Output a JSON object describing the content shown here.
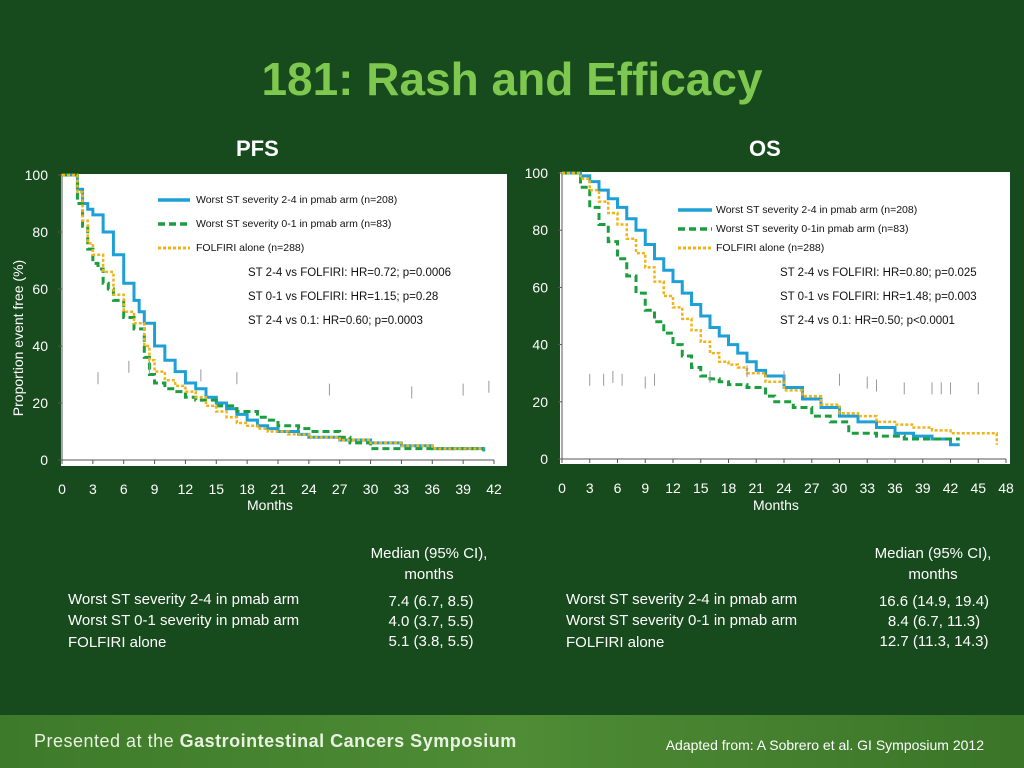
{
  "slide": {
    "title": "181: Rash and Efficacy",
    "footer_prefix": "Presented at the",
    "footer_event": "Gastrointestinal Cancers Symposium",
    "footer_source": "Adapted from: A Sobrero et al. GI Symposium 2012",
    "ylabel": "Proportion event free (%)"
  },
  "colors": {
    "pmab_2_4": "#1ea0d6",
    "pmab_0_1": "#1a9e3e",
    "folfiri": "#f0b419"
  },
  "chart_data": [
    {
      "type": "line",
      "title": "PFS",
      "xlabel": "Months",
      "ylabel": "Proportion event free (%)",
      "xticks": [
        0,
        3,
        6,
        9,
        12,
        15,
        18,
        21,
        24,
        27,
        30,
        33,
        36,
        39,
        42
      ],
      "yticks": [
        0,
        20,
        40,
        60,
        80,
        100
      ],
      "xlim": [
        0,
        42
      ],
      "ylim": [
        0,
        100
      ],
      "legend": [
        "Worst ST severity 2-4 in pmab arm (n=208)",
        "Worst ST severity 0-1 in pmab arm (n=83)",
        "FOLFIRI alone (n=288)"
      ],
      "annotations": [
        "ST 2-4 vs FOLFIRI: HR=0.72; p=0.0006",
        "ST 0-1 vs FOLFIRI: HR=1.15; p=0.28",
        "ST 2-4 vs 0.1: HR=0.60; p=0.0003"
      ],
      "series": [
        {
          "key": "pmab_2_4",
          "x": [
            0,
            1,
            1.5,
            2,
            2.5,
            3,
            4,
            5,
            6,
            7,
            7.5,
            8,
            9,
            10,
            11,
            12,
            13,
            14,
            15,
            16,
            17,
            18,
            19,
            20,
            21,
            22,
            23,
            24,
            25,
            27,
            30,
            33,
            36,
            39,
            41
          ],
          "y": [
            100,
            100,
            95,
            90,
            88,
            86,
            80,
            72,
            62,
            56,
            52,
            48,
            40,
            35,
            31,
            27,
            25,
            22,
            20,
            18,
            16,
            14,
            12,
            11,
            10,
            10,
            9,
            8,
            8,
            7,
            6,
            5,
            4,
            4,
            3
          ]
        },
        {
          "key": "pmab_0_1",
          "x": [
            0,
            1,
            1.5,
            2,
            2.5,
            3,
            3.5,
            4,
            4.5,
            5,
            6,
            7,
            8,
            8.5,
            9,
            10,
            11,
            12,
            13,
            15,
            17,
            19,
            20,
            21,
            23,
            24,
            27,
            28,
            30,
            33,
            36,
            39,
            41
          ],
          "y": [
            100,
            100,
            90,
            82,
            74,
            69,
            67,
            62,
            60,
            56,
            50,
            46,
            36,
            30,
            27,
            25,
            24,
            22,
            21,
            19,
            17,
            15,
            14,
            12,
            11,
            10,
            8,
            6,
            4,
            4,
            4,
            4,
            4
          ]
        },
        {
          "key": "folfiri",
          "x": [
            0,
            1,
            1.5,
            2,
            2.5,
            3,
            4,
            5,
            6,
            7,
            8,
            8.5,
            9,
            10,
            11,
            12,
            13,
            14,
            15,
            16,
            17,
            18,
            19,
            20,
            21,
            22,
            24,
            27,
            30,
            33,
            36,
            39,
            41
          ],
          "y": [
            100,
            100,
            94,
            84,
            76,
            72,
            66,
            58,
            52,
            48,
            40,
            35,
            31,
            28,
            26,
            24,
            22,
            19,
            17,
            15,
            13,
            12,
            11,
            10,
            10,
            9,
            8,
            7,
            6,
            5,
            4,
            4,
            4
          ]
        }
      ]
    },
    {
      "type": "line",
      "title": "OS",
      "xlabel": "Months",
      "ylabel": "",
      "xticks": [
        0,
        3,
        6,
        9,
        12,
        15,
        18,
        21,
        24,
        27,
        30,
        33,
        36,
        39,
        42,
        45,
        48
      ],
      "yticks": [
        0,
        20,
        40,
        60,
        80,
        100
      ],
      "xlim": [
        0,
        48
      ],
      "ylim": [
        0,
        100
      ],
      "legend": [
        "Worst ST severity 2-4 in pmab arm (n=208)",
        "Worst ST severity 0-1in pmab  arm (n=83)",
        "FOLFIRI alone (n=288)"
      ],
      "annotations": [
        "ST 2-4 vs FOLFIRI: HR=0.80; p=0.025",
        "ST 0-1 vs FOLFIRI: HR=1.48; p=0.003",
        "ST 2-4 vs 0.1: HR=0.50; p<0.0001"
      ],
      "series": [
        {
          "key": "pmab_2_4",
          "x": [
            0,
            1,
            2,
            3,
            4,
            5,
            6,
            7,
            8,
            9,
            10,
            11,
            12,
            13,
            14,
            15,
            16,
            17,
            18,
            19,
            20,
            21,
            22,
            24,
            26,
            28,
            30,
            32,
            34,
            36,
            38,
            40,
            42,
            43
          ],
          "y": [
            100,
            100,
            99,
            97,
            94,
            91,
            88,
            84,
            80,
            75,
            70,
            66,
            62,
            58,
            54,
            50,
            46,
            43,
            40,
            37,
            34,
            31,
            29,
            25,
            21,
            18,
            15,
            13,
            11,
            9,
            8,
            7,
            5,
            5
          ]
        },
        {
          "key": "pmab_0_1",
          "x": [
            0,
            1,
            2,
            3,
            4,
            5,
            6,
            7,
            8,
            9,
            10,
            11,
            12,
            13,
            14,
            15,
            16,
            17,
            18,
            20,
            22,
            23,
            25,
            27,
            29,
            31,
            34,
            37,
            40,
            43
          ],
          "y": [
            100,
            100,
            95,
            88,
            82,
            76,
            70,
            64,
            58,
            52,
            48,
            44,
            40,
            36,
            32,
            29,
            28,
            27,
            26,
            25,
            22,
            20,
            18,
            15,
            13,
            9,
            8,
            7,
            7,
            7
          ]
        },
        {
          "key": "folfiri",
          "x": [
            0,
            1,
            2,
            3,
            4,
            5,
            6,
            7,
            8,
            9,
            10,
            11,
            12,
            13,
            14,
            15,
            16,
            17,
            18,
            19,
            20,
            22,
            24,
            26,
            28,
            30,
            32,
            34,
            36,
            38,
            40,
            42,
            44,
            46,
            47
          ],
          "y": [
            100,
            100,
            98,
            94,
            90,
            86,
            82,
            77,
            72,
            67,
            62,
            57,
            53,
            49,
            45,
            41,
            37,
            34,
            33,
            32,
            30,
            27,
            24,
            22,
            19,
            16,
            15,
            13,
            12,
            11,
            10,
            9,
            9,
            9,
            5
          ]
        }
      ]
    }
  ],
  "tables": [
    {
      "col_head": "Median (95% CI), months",
      "rows": [
        {
          "label": "Worst ST severity 2-4 in pmab arm",
          "value": "7.4 (6.7, 8.5)"
        },
        {
          "label": "Worst ST 0-1 severity in pmab arm",
          "value": "4.0 (3.7, 5.5)"
        },
        {
          "label": "FOLFIRI alone",
          "value": "5.1 (3.8, 5.5)"
        }
      ]
    },
    {
      "col_head": "Median (95% CI), months",
      "rows": [
        {
          "label": "Worst ST severity 2-4 in pmab arm",
          "value": "16.6 (14.9, 19.4)"
        },
        {
          "label": "Worst ST severity 0-1 in pmab arm",
          "value": "8.4 (6.7, 11.3)"
        },
        {
          "label": "FOLFIRI alone",
          "value": "12.7 (11.3, 14.3)"
        }
      ]
    }
  ]
}
